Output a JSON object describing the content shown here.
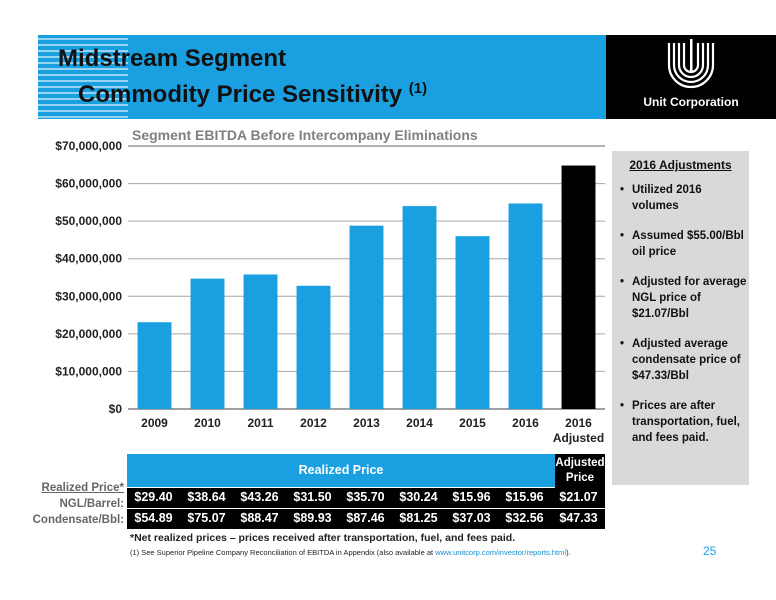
{
  "slide": {
    "title_line1": "Midstream Segment",
    "title_line2": "Commodity Price Sensitivity",
    "title_sup": "(1)",
    "logo_text": "Unit Corporation",
    "page_number": "25"
  },
  "chart_data": {
    "type": "bar",
    "title": "Segment EBITDA Before Intercompany Eliminations",
    "categories": [
      "2009",
      "2010",
      "2011",
      "2012",
      "2013",
      "2014",
      "2015",
      "2016",
      "2016 Adjusted"
    ],
    "values": [
      23100000,
      34700000,
      35800000,
      32800000,
      48800000,
      54000000,
      46000000,
      54700000,
      64800000
    ],
    "colors": [
      "#1aa0e0",
      "#1aa0e0",
      "#1aa0e0",
      "#1aa0e0",
      "#1aa0e0",
      "#1aa0e0",
      "#1aa0e0",
      "#1aa0e0",
      "#000000"
    ],
    "ylim": [
      0,
      70000000
    ],
    "yticks": [
      "$0",
      "$10,000,000",
      "$20,000,000",
      "$30,000,000",
      "$40,000,000",
      "$50,000,000",
      "$60,000,000",
      "$70,000,000"
    ],
    "grid": true
  },
  "sidebar": {
    "title": "2016 Adjustments",
    "items": [
      "Utilized 2016 volumes",
      "Assumed $55.00/Bbl oil price",
      "Adjusted for average NGL price of $21.07/Bbl",
      "Adjusted average condensate price of $47.33/Bbl",
      "Prices are after transportation, fuel, and fees paid."
    ]
  },
  "price_table": {
    "row_title": "Realized Price*",
    "header": "Realized Price",
    "adjusted_header": "Adjusted Price",
    "rows": [
      {
        "label": "NGL/Barrel:",
        "values": [
          "$29.40",
          "$38.64",
          "$43.26",
          "$31.50",
          "$35.70",
          "$30.24",
          "$15.96",
          "$15.96",
          "$21.07"
        ]
      },
      {
        "label": "Condensate/Bbl:",
        "values": [
          "$54.89",
          "$75.07",
          "$88.47",
          "$89.93",
          "$87.46",
          "$81.25",
          "$37.03",
          "$32.56",
          "$47.33"
        ]
      }
    ]
  },
  "footnotes": {
    "net_realized": "*Net realized prices – prices received after transportation, fuel, and fees paid.",
    "note1_text": "(1)    See Superior Pipeline Company Reconciliation of EBITDA in Appendix (also available at ",
    "note1_link": "www.unitcorp.com/investor/reports.html",
    "note1_end": ")."
  }
}
